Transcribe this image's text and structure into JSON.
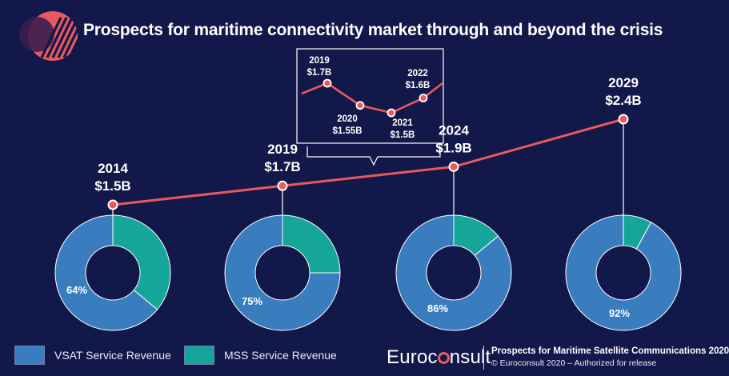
{
  "title": "Prospects for maritime connectivity market through and beyond the crisis",
  "colors": {
    "background": "#13184a",
    "vsat": "#3a7dbf",
    "mss": "#15a699",
    "line": "#e85a5d",
    "inset_box": "#ffffff"
  },
  "chart_data": [
    {
      "type": "line",
      "title": "",
      "x": [
        "2014",
        "2019",
        "2024",
        "2029"
      ],
      "y": [
        1.5,
        1.7,
        1.9,
        2.4
      ],
      "labels": [
        {
          "year": "2014",
          "value": "$1.5B"
        },
        {
          "year": "2019",
          "value": "$1.7B"
        },
        {
          "year": "2024",
          "value": "$1.9B"
        },
        {
          "year": "2029",
          "value": "$2.4B"
        }
      ],
      "unit": "$B",
      "xlabel": "",
      "ylabel": ""
    },
    {
      "type": "line",
      "title": "",
      "x": [
        "2019",
        "2020",
        "2021",
        "2022"
      ],
      "y": [
        1.7,
        1.55,
        1.5,
        1.6
      ],
      "labels": [
        {
          "year": "2019",
          "value": "$1.7B"
        },
        {
          "year": "2020",
          "value": "$1.55B"
        },
        {
          "year": "2021",
          "value": "$1.5B"
        },
        {
          "year": "2022",
          "value": "$1.6B"
        }
      ],
      "unit": "$B"
    },
    {
      "type": "pie",
      "series": [
        {
          "name": "VSAT Service Revenue",
          "color": "#3a7dbf"
        },
        {
          "name": "MSS Service Revenue",
          "color": "#15a699"
        }
      ],
      "donuts": [
        {
          "year": "2014",
          "vsat": 64,
          "mss": 36,
          "label": "64%"
        },
        {
          "year": "2019",
          "vsat": 75,
          "mss": 25,
          "label": "75%"
        },
        {
          "year": "2024",
          "vsat": 86,
          "mss": 14,
          "label": "86%"
        },
        {
          "year": "2029",
          "vsat": 92,
          "mss": 8,
          "label": "92%"
        }
      ]
    }
  ],
  "legend": {
    "vsat_label": "VSAT Service Revenue",
    "mss_label": "MSS Service Revenue"
  },
  "footer": {
    "logo_pre": "Euroc",
    "logo_post": "nsult",
    "line1": "Prospects for Maritime Satellite Communications 2020",
    "line2": "© Euroconsult 2020 – Authorized for release"
  }
}
